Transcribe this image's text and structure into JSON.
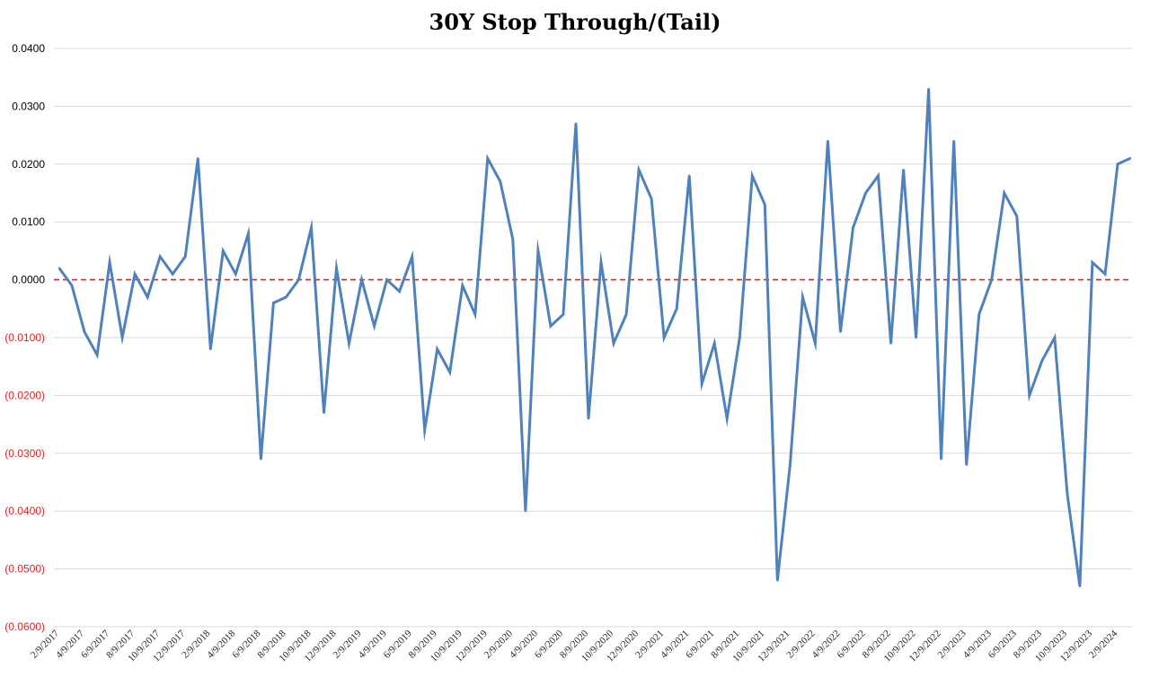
{
  "chart_data": {
    "type": "line",
    "title": "30Y Stop Through/(Tail)",
    "xlabel": "",
    "ylabel": "",
    "ylim": [
      -0.06,
      0.04
    ],
    "grid": true,
    "colors": {
      "series": "#4f81bd",
      "zero_line": "#e02020",
      "negative_tick": "#e02020",
      "positive_tick": "#000000"
    },
    "y_ticks": [
      {
        "value": 0.04,
        "label": "0.0400"
      },
      {
        "value": 0.03,
        "label": "0.0300"
      },
      {
        "value": 0.02,
        "label": "0.0200"
      },
      {
        "value": 0.01,
        "label": "0.0100"
      },
      {
        "value": 0.0,
        "label": "0.0000"
      },
      {
        "value": -0.01,
        "label": "(0.0100)"
      },
      {
        "value": -0.02,
        "label": "(0.0200)"
      },
      {
        "value": -0.03,
        "label": "(0.0300)"
      },
      {
        "value": -0.04,
        "label": "(0.0400)"
      },
      {
        "value": -0.05,
        "label": "(0.0500)"
      },
      {
        "value": -0.06,
        "label": "(0.0600)"
      }
    ],
    "x_tick_labels": [
      "2/9/2017",
      "4/9/2017",
      "6/9/2017",
      "8/9/2017",
      "10/9/2017",
      "12/9/2017",
      "2/9/2018",
      "4/9/2018",
      "6/9/2018",
      "8/9/2018",
      "10/9/2018",
      "12/9/2018",
      "2/9/2019",
      "4/9/2019",
      "6/9/2019",
      "8/9/2019",
      "10/9/2019",
      "12/9/2019",
      "2/9/2020",
      "4/9/2020",
      "6/9/2020",
      "8/9/2020",
      "10/9/2020",
      "12/9/2020",
      "2/9/2021",
      "4/9/2021",
      "6/9/2021",
      "8/9/2021",
      "10/9/2021",
      "12/9/2021",
      "2/9/2022",
      "4/9/2022",
      "6/9/2022",
      "8/9/2022",
      "10/9/2022",
      "12/9/2022",
      "2/9/2023",
      "4/9/2023",
      "6/9/2023",
      "8/9/2023",
      "10/9/2023",
      "12/9/2023",
      "2/9/2024"
    ],
    "series": [
      {
        "values": [
          0.002,
          -0.001,
          -0.009,
          -0.013,
          0.003,
          -0.01,
          0.001,
          -0.003,
          0.004,
          0.001,
          0.004,
          0.021,
          -0.012,
          0.005,
          0.001,
          0.008,
          -0.031,
          -0.004,
          -0.003,
          0.0,
          0.009,
          -0.023,
          0.002,
          -0.011,
          0.0,
          -0.008,
          0.0,
          -0.002,
          0.004,
          -0.026,
          -0.012,
          -0.016,
          -0.001,
          -0.006,
          0.021,
          0.017,
          0.007,
          -0.04,
          0.005,
          -0.008,
          -0.006,
          0.027,
          -0.024,
          0.003,
          -0.011,
          -0.006,
          0.019,
          0.014,
          -0.01,
          -0.005,
          0.018,
          -0.018,
          -0.011,
          -0.024,
          -0.01,
          0.018,
          0.013,
          -0.052,
          -0.032,
          -0.003,
          -0.011,
          0.024,
          -0.009,
          0.009,
          0.015,
          0.018,
          -0.011,
          0.019,
          -0.01,
          0.033,
          -0.031,
          0.024,
          -0.032,
          -0.006,
          0.0,
          0.015,
          0.011,
          -0.02,
          -0.014,
          -0.01,
          -0.037,
          -0.053,
          0.003,
          0.001,
          0.02,
          0.021
        ]
      }
    ],
    "reference_line": {
      "value": 0.0,
      "style": "dashed"
    }
  }
}
